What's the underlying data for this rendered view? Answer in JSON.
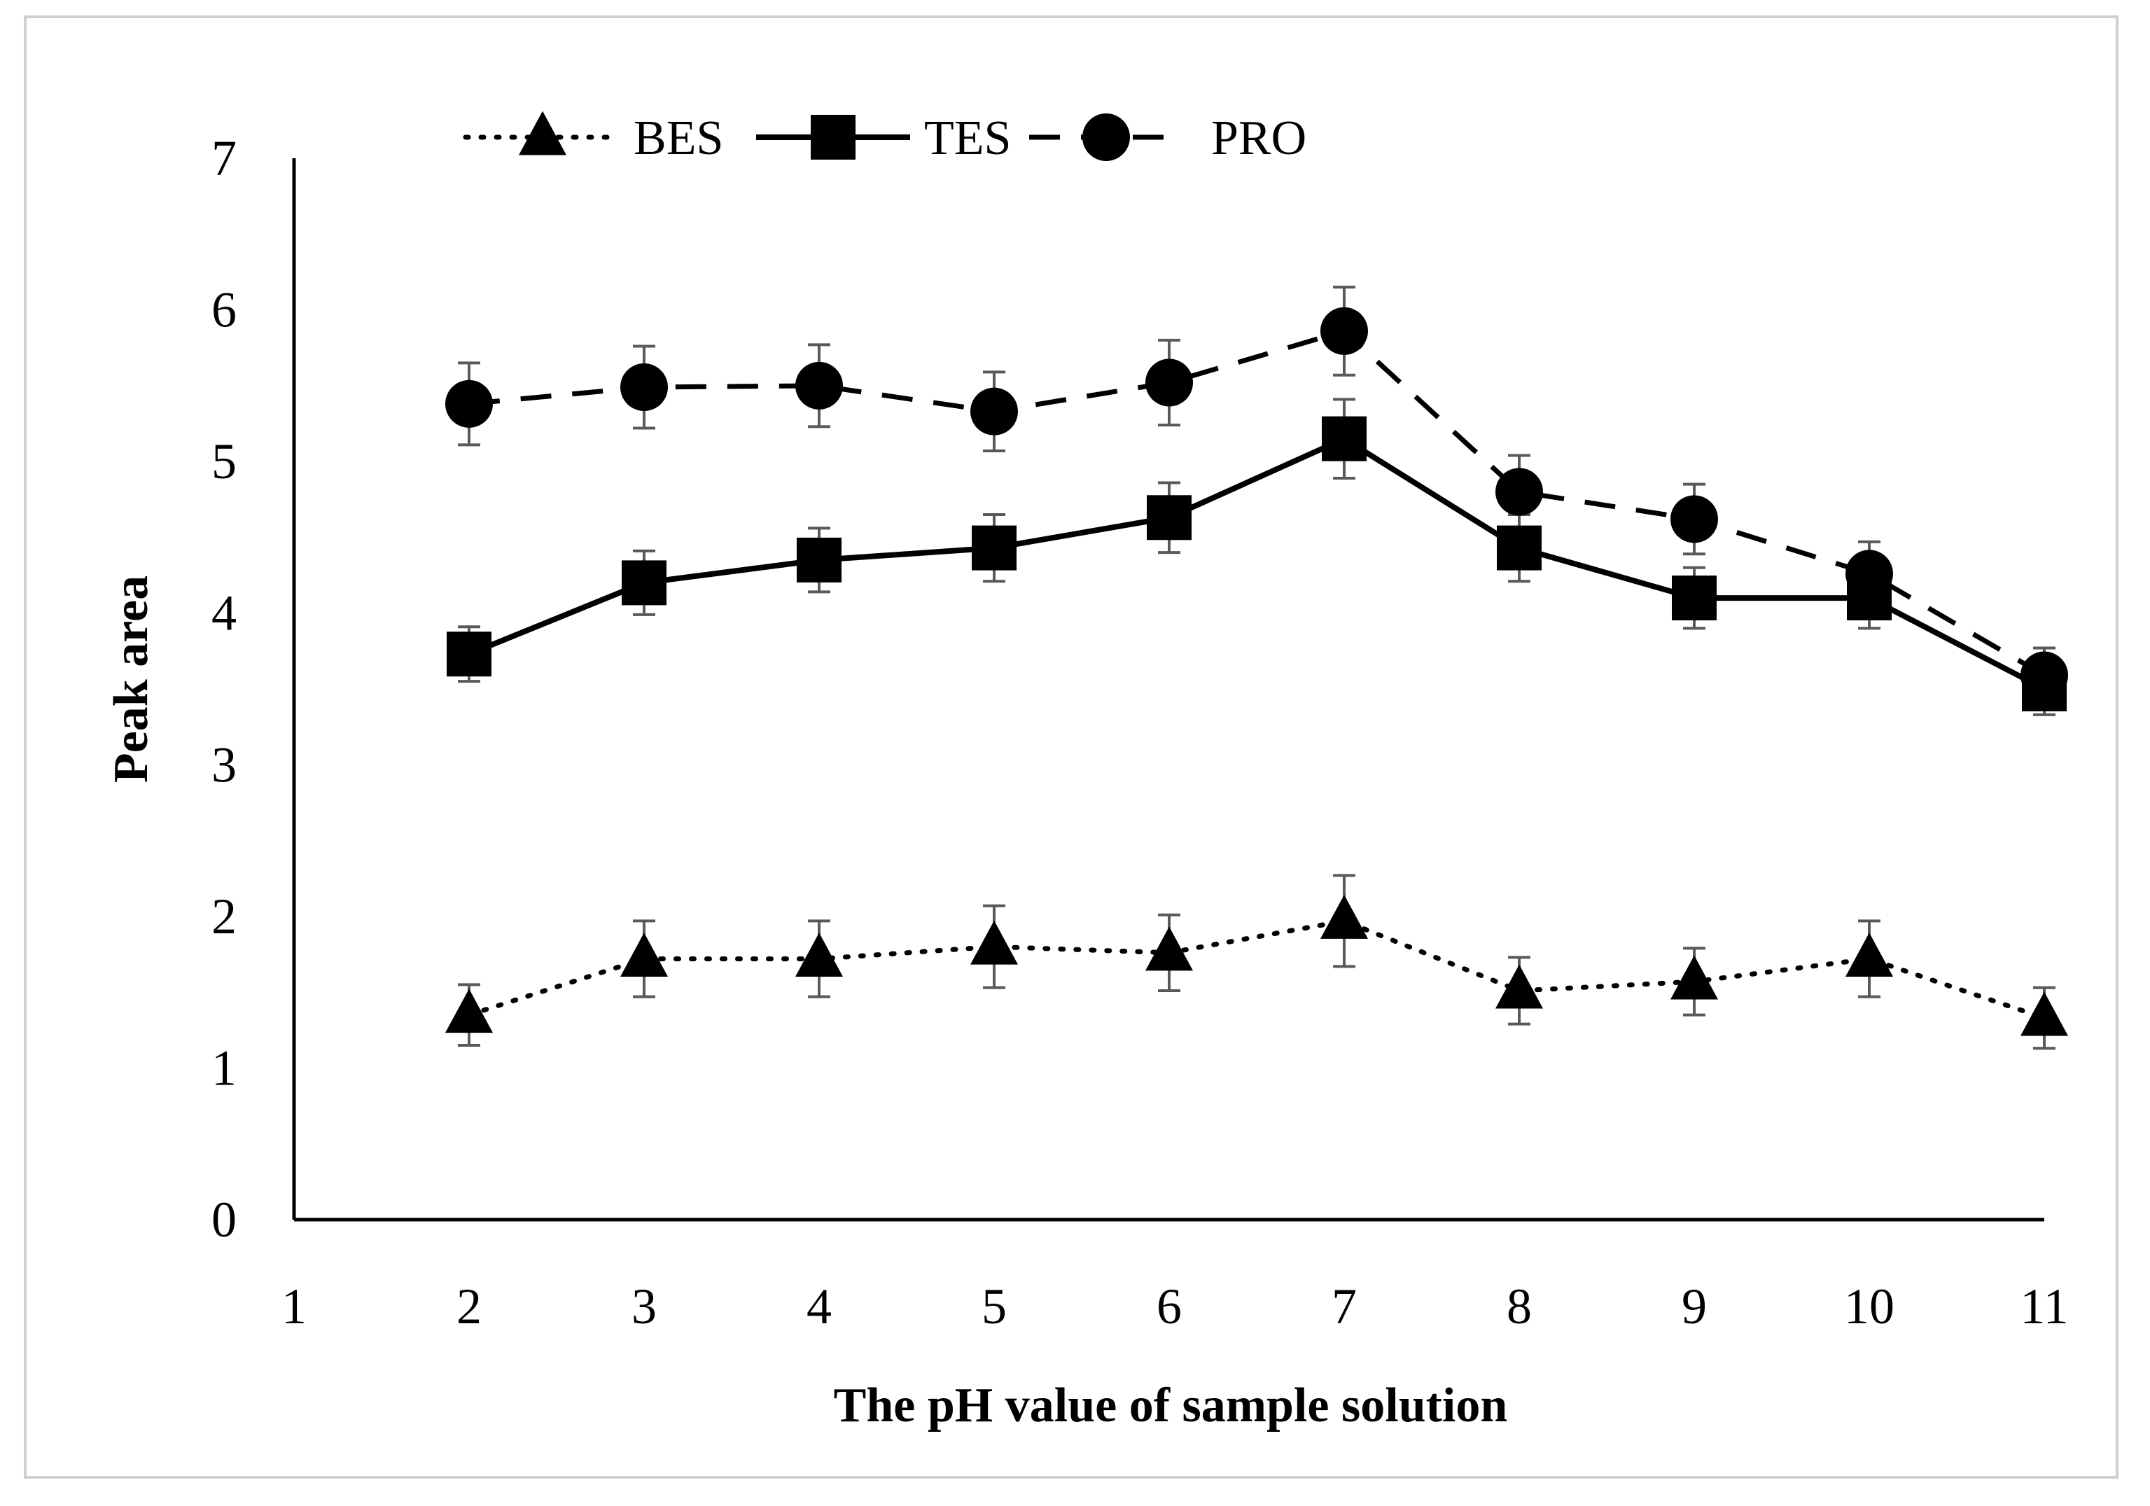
{
  "chart_data": {
    "type": "line",
    "title": "",
    "xlabel": "The pH value of sample solution",
    "ylabel": "Peak area",
    "xlim": [
      1,
      11
    ],
    "ylim": [
      0,
      7
    ],
    "xticks": [
      "1",
      "2",
      "3",
      "4",
      "5",
      "6",
      "7",
      "8",
      "9",
      "10",
      "11"
    ],
    "yticks": [
      "0",
      "1",
      "2",
      "3",
      "4",
      "5",
      "6",
      "7"
    ],
    "grid": false,
    "legend": "top",
    "x": [
      2,
      3,
      4,
      5,
      6,
      7,
      8,
      9,
      10,
      11
    ],
    "series": [
      {
        "name": "BES",
        "marker": "triangle",
        "line": "dotted",
        "color": "#000000",
        "values": [
          1.35,
          1.72,
          1.72,
          1.8,
          1.76,
          1.97,
          1.51,
          1.57,
          1.72,
          1.33
        ],
        "errors": [
          0.2,
          0.25,
          0.25,
          0.27,
          0.25,
          0.3,
          0.22,
          0.22,
          0.25,
          0.2
        ]
      },
      {
        "name": "TES",
        "marker": "square",
        "line": "solid",
        "color": "#000000",
        "values": [
          3.73,
          4.2,
          4.35,
          4.43,
          4.63,
          5.15,
          4.43,
          4.1,
          4.1,
          3.5
        ],
        "errors": [
          0.18,
          0.21,
          0.21,
          0.22,
          0.23,
          0.26,
          0.22,
          0.2,
          0.2,
          0.17
        ]
      },
      {
        "name": "PRO",
        "marker": "circle",
        "line": "dashed",
        "color": "#000000",
        "values": [
          5.38,
          5.49,
          5.5,
          5.33,
          5.52,
          5.86,
          4.8,
          4.62,
          4.26,
          3.59
        ],
        "errors": [
          0.27,
          0.27,
          0.27,
          0.26,
          0.28,
          0.29,
          0.24,
          0.23,
          0.21,
          0.18
        ]
      }
    ]
  }
}
